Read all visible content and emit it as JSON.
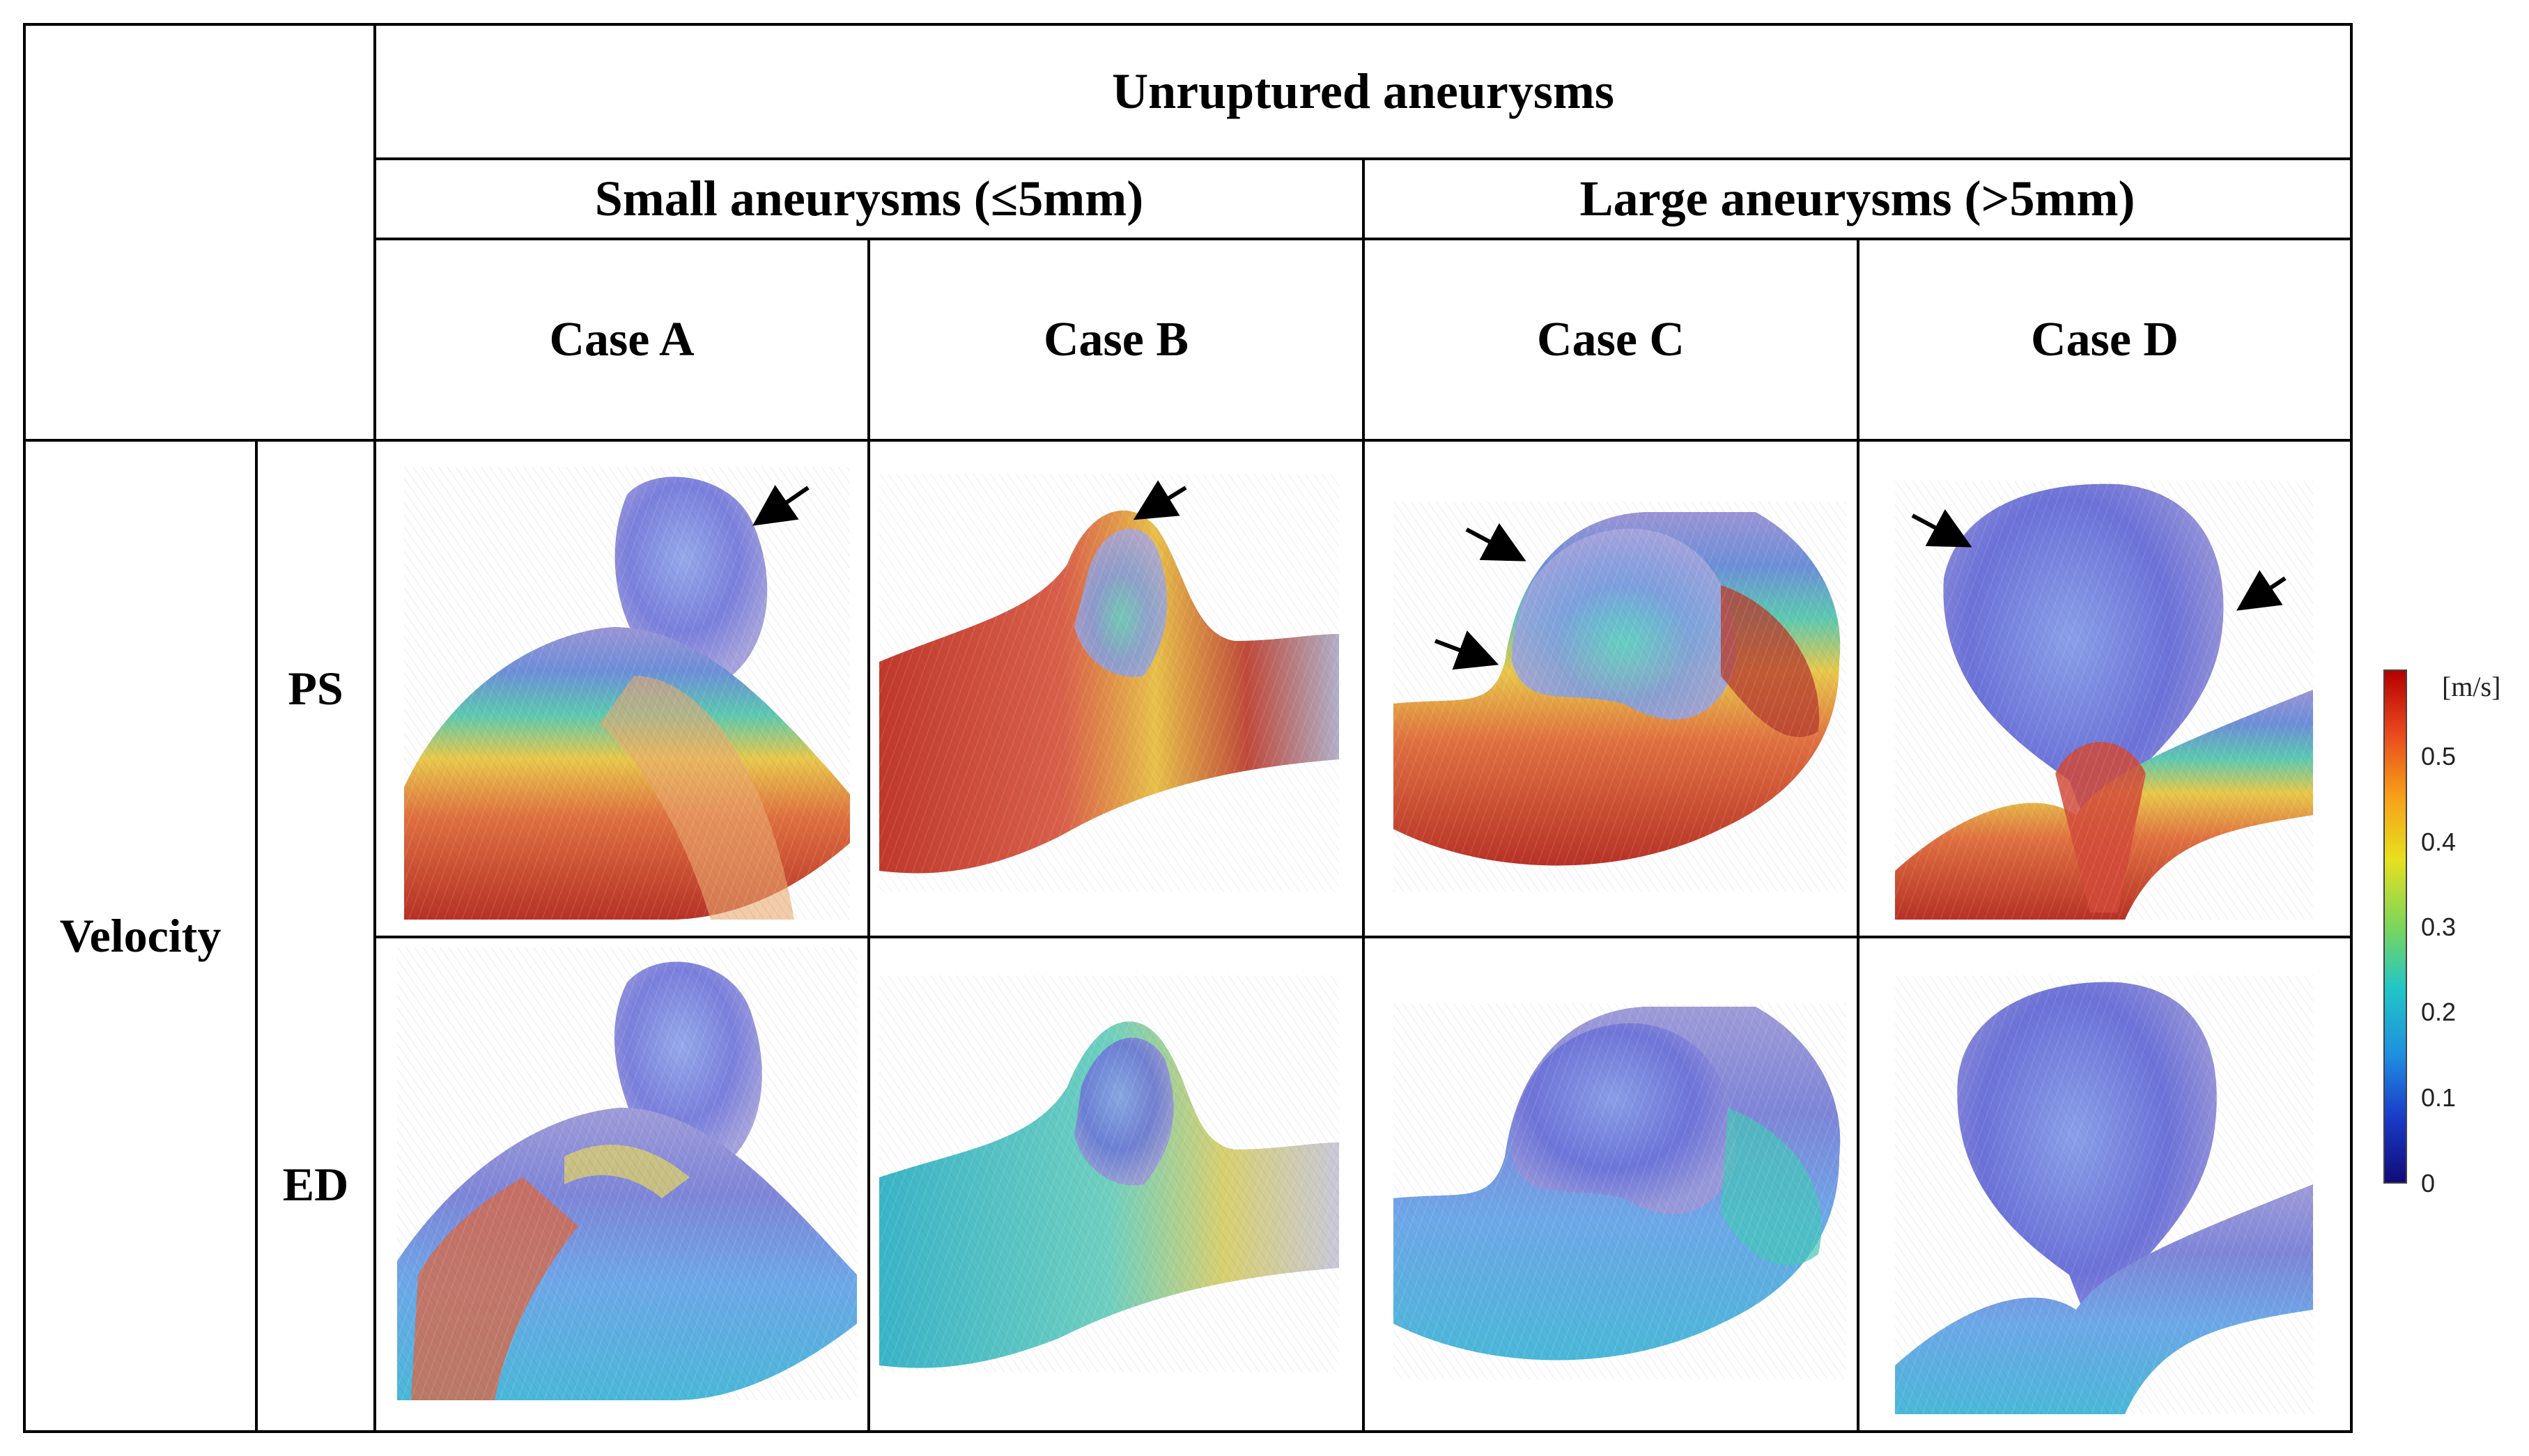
{
  "table": {
    "group_header": "Unruptured aneurysms",
    "subgroups": [
      "Small aneurysms (≤5mm)",
      "Large aneurysms (>5mm)"
    ],
    "cases": [
      "Case A",
      "Case B",
      "Case C",
      "Case D"
    ],
    "quantity_label": "Velocity",
    "phases": [
      "PS",
      "ED"
    ]
  },
  "colorbar": {
    "unit": "[m/s]",
    "ticks": [
      "0.5",
      "0.4",
      "0.3",
      "0.2",
      "0.1",
      "0"
    ],
    "colors": [
      "#b30000",
      "#e8471c",
      "#f7a21a",
      "#e6e01f",
      "#7bd65a",
      "#22c6c6",
      "#1f8fe0",
      "#1a3cc8",
      "#120a78"
    ]
  },
  "panels": [
    {
      "case": "Case A",
      "phase": "PS",
      "arrows": 1
    },
    {
      "case": "Case B",
      "phase": "PS",
      "arrows": 1
    },
    {
      "case": "Case C",
      "phase": "PS",
      "arrows": 2
    },
    {
      "case": "Case D",
      "phase": "PS",
      "arrows": 2
    },
    {
      "case": "Case A",
      "phase": "ED",
      "arrows": 0
    },
    {
      "case": "Case B",
      "phase": "ED",
      "arrows": 0
    },
    {
      "case": "Case C",
      "phase": "ED",
      "arrows": 0
    },
    {
      "case": "Case D",
      "phase": "ED",
      "arrows": 0
    }
  ]
}
